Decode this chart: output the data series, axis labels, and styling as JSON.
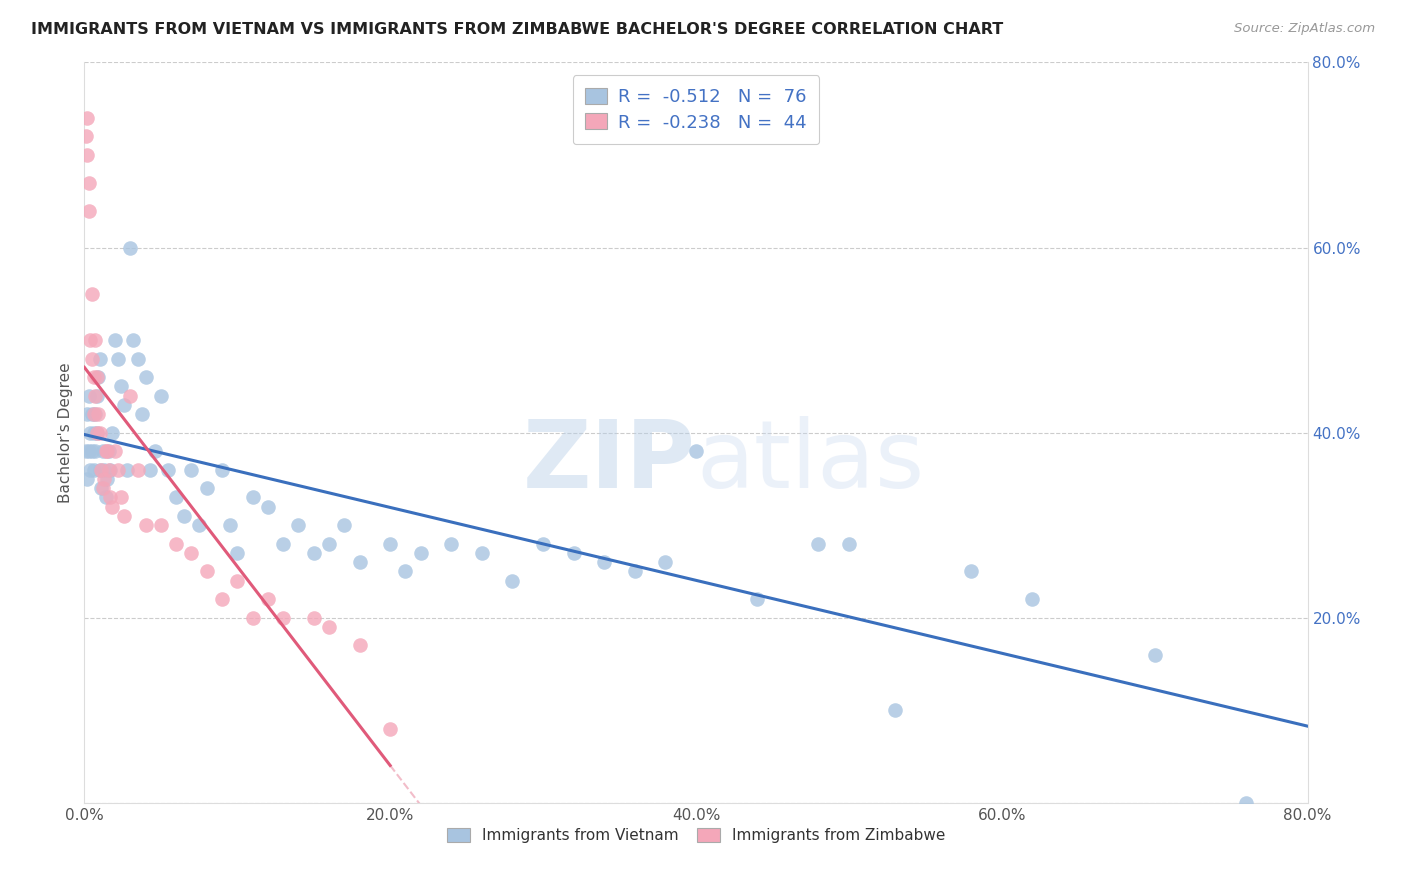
{
  "title": "IMMIGRANTS FROM VIETNAM VS IMMIGRANTS FROM ZIMBABWE BACHELOR'S DEGREE CORRELATION CHART",
  "source": "Source: ZipAtlas.com",
  "ylabel": "Bachelor's Degree",
  "xmin": 0.0,
  "xmax": 0.8,
  "ymin": 0.0,
  "ymax": 0.8,
  "xticks": [
    0.0,
    0.2,
    0.4,
    0.6,
    0.8
  ],
  "yticks_right": [
    0.2,
    0.4,
    0.6,
    0.8
  ],
  "vietnam_color": "#a8c4e0",
  "zimbabwe_color": "#f4a7b9",
  "vietnam_line_color": "#3a6fbd",
  "zimbabwe_line_color": "#e05a7a",
  "R_vietnam": -0.512,
  "N_vietnam": 76,
  "R_zimbabwe": -0.238,
  "N_zimbabwe": 44,
  "legend_label_vietnam": "Immigrants from Vietnam",
  "legend_label_zimbabwe": "Immigrants from Zimbabwe",
  "vietnam_x": [
    0.001,
    0.002,
    0.002,
    0.003,
    0.003,
    0.004,
    0.004,
    0.005,
    0.005,
    0.006,
    0.006,
    0.007,
    0.007,
    0.008,
    0.008,
    0.009,
    0.01,
    0.01,
    0.011,
    0.012,
    0.013,
    0.014,
    0.015,
    0.016,
    0.017,
    0.018,
    0.02,
    0.022,
    0.024,
    0.026,
    0.028,
    0.03,
    0.032,
    0.035,
    0.038,
    0.04,
    0.043,
    0.046,
    0.05,
    0.055,
    0.06,
    0.065,
    0.07,
    0.075,
    0.08,
    0.09,
    0.095,
    0.1,
    0.11,
    0.12,
    0.13,
    0.14,
    0.15,
    0.16,
    0.17,
    0.18,
    0.2,
    0.21,
    0.22,
    0.24,
    0.26,
    0.28,
    0.3,
    0.32,
    0.34,
    0.36,
    0.38,
    0.4,
    0.44,
    0.48,
    0.5,
    0.53,
    0.58,
    0.62,
    0.7,
    0.76
  ],
  "vietnam_y": [
    0.38,
    0.42,
    0.35,
    0.44,
    0.38,
    0.4,
    0.36,
    0.42,
    0.38,
    0.4,
    0.36,
    0.38,
    0.42,
    0.44,
    0.4,
    0.46,
    0.48,
    0.36,
    0.34,
    0.38,
    0.36,
    0.33,
    0.35,
    0.38,
    0.36,
    0.4,
    0.5,
    0.48,
    0.45,
    0.43,
    0.36,
    0.6,
    0.5,
    0.48,
    0.42,
    0.46,
    0.36,
    0.38,
    0.44,
    0.36,
    0.33,
    0.31,
    0.36,
    0.3,
    0.34,
    0.36,
    0.3,
    0.27,
    0.33,
    0.32,
    0.28,
    0.3,
    0.27,
    0.28,
    0.3,
    0.26,
    0.28,
    0.25,
    0.27,
    0.28,
    0.27,
    0.24,
    0.28,
    0.27,
    0.26,
    0.25,
    0.26,
    0.38,
    0.22,
    0.28,
    0.28,
    0.1,
    0.25,
    0.22,
    0.16,
    0.0
  ],
  "zimbabwe_x": [
    0.001,
    0.002,
    0.002,
    0.003,
    0.003,
    0.004,
    0.005,
    0.005,
    0.006,
    0.006,
    0.007,
    0.007,
    0.008,
    0.008,
    0.009,
    0.01,
    0.011,
    0.012,
    0.013,
    0.014,
    0.015,
    0.016,
    0.017,
    0.018,
    0.02,
    0.022,
    0.024,
    0.026,
    0.03,
    0.035,
    0.04,
    0.05,
    0.06,
    0.07,
    0.08,
    0.09,
    0.1,
    0.11,
    0.12,
    0.13,
    0.15,
    0.16,
    0.18,
    0.2
  ],
  "zimbabwe_y": [
    0.72,
    0.74,
    0.7,
    0.67,
    0.64,
    0.5,
    0.55,
    0.48,
    0.46,
    0.42,
    0.44,
    0.5,
    0.4,
    0.46,
    0.42,
    0.4,
    0.36,
    0.34,
    0.35,
    0.38,
    0.38,
    0.36,
    0.33,
    0.32,
    0.38,
    0.36,
    0.33,
    0.31,
    0.44,
    0.36,
    0.3,
    0.3,
    0.28,
    0.27,
    0.25,
    0.22,
    0.24,
    0.2,
    0.22,
    0.2,
    0.2,
    0.19,
    0.17,
    0.08
  ],
  "watermark_zip": "ZIP",
  "watermark_atlas": "atlas",
  "background_color": "#ffffff",
  "grid_color": "#cccccc"
}
